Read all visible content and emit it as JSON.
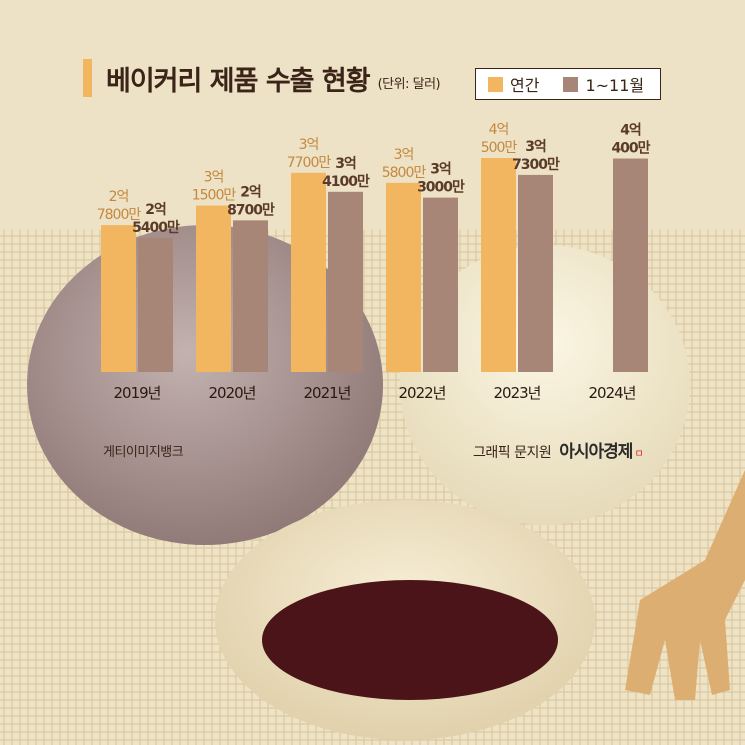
{
  "header": {
    "title": "베이커리 제품 수출 현황",
    "unit": "(단위: 달러)"
  },
  "legend": [
    {
      "label": "연간",
      "color": "#f2b661"
    },
    {
      "label": "1~11월",
      "color": "#a78677"
    }
  ],
  "credits": {
    "photo": "게티이미지뱅크",
    "graphic": "그래픽 문지원",
    "brand": "아시아경제",
    "brand_mark": "ㅁ"
  },
  "chart_data": {
    "type": "bar",
    "categories": [
      "2019년",
      "2020년",
      "2021년",
      "2022년",
      "2023년",
      "2024년"
    ],
    "series": [
      {
        "name": "연간",
        "color": "#f2b661",
        "values": [
          278000000,
          315000000,
          377000000,
          358000000,
          405000000,
          null
        ],
        "labels": [
          [
            "2억",
            "7800만"
          ],
          [
            "3억",
            "1500만"
          ],
          [
            "3억",
            "7700만"
          ],
          [
            "3억",
            "5800만"
          ],
          [
            "4억",
            "500만"
          ],
          null
        ]
      },
      {
        "name": "1~11월",
        "color": "#a78677",
        "values": [
          254000000,
          287000000,
          341000000,
          330000000,
          373000000,
          404000000
        ],
        "labels": [
          [
            "2억",
            "5400만"
          ],
          [
            "2억",
            "8700만"
          ],
          [
            "3억",
            "4100만"
          ],
          [
            "3억",
            "3000만"
          ],
          [
            "3억",
            "7300만"
          ],
          [
            "4억",
            "400만"
          ]
        ]
      }
    ],
    "ylim": [
      0,
      405000000
    ],
    "grid": false,
    "legend_position": "top-right"
  }
}
